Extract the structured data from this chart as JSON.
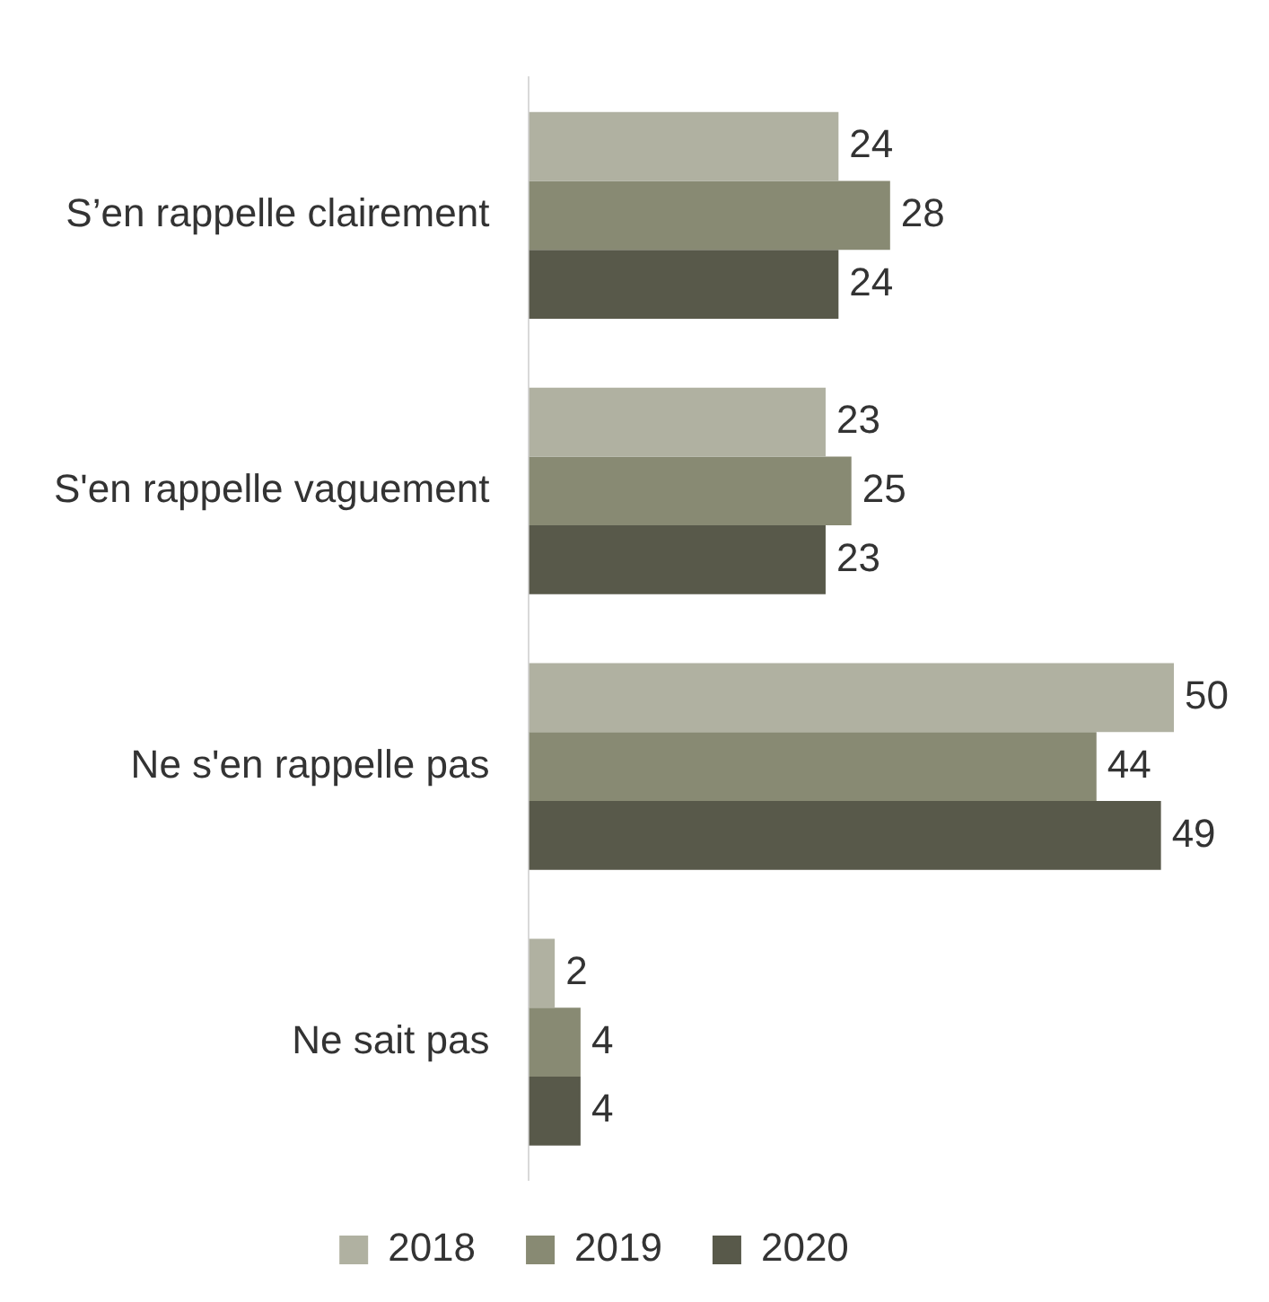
{
  "chart_data": {
    "type": "bar",
    "orientation": "horizontal",
    "categories": [
      "S’en rappelle clairement",
      "S'en rappelle vaguement",
      "Ne s'en rappelle pas",
      "Ne sait pas"
    ],
    "series": [
      {
        "name": "2018",
        "color": "#b0b1a1",
        "values": [
          24,
          23,
          50,
          2
        ]
      },
      {
        "name": "2019",
        "color": "#888a73",
        "values": [
          28,
          25,
          44,
          4
        ]
      },
      {
        "name": "2020",
        "color": "#58594a",
        "values": [
          24,
          23,
          49,
          4
        ]
      }
    ],
    "xlim": [
      0,
      50
    ],
    "data_labels": true,
    "grid": false,
    "legend": "bottom",
    "tick_labels": "y"
  }
}
